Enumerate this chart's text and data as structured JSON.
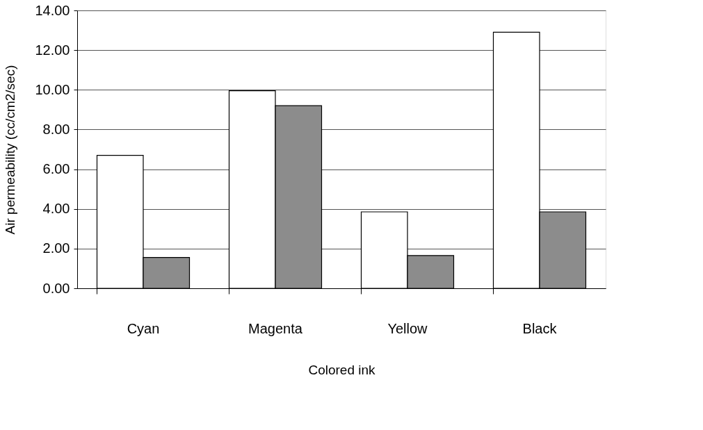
{
  "chart_data": {
    "type": "bar",
    "xlabel": "Colored ink",
    "ylabel": "Air permeability (cc/cm2/sec)",
    "categories": [
      "Cyan",
      "Magenta",
      "Yellow",
      "Black"
    ],
    "series": [
      {
        "color": "#ffffff",
        "values": [
          6.7,
          9.95,
          3.85,
          12.9
        ]
      },
      {
        "color": "#8c8c8c",
        "values": [
          1.55,
          9.2,
          1.65,
          3.85
        ]
      }
    ],
    "ylim": [
      0,
      14
    ],
    "yticks": [
      {
        "value": 0,
        "label": "0.00"
      },
      {
        "value": 2,
        "label": "2.00"
      },
      {
        "value": 4,
        "label": "4.00"
      },
      {
        "value": 6,
        "label": "6.00"
      },
      {
        "value": 8,
        "label": "8.00"
      },
      {
        "value": 10,
        "label": "10.00"
      },
      {
        "value": 12,
        "label": "12.00"
      },
      {
        "value": 14,
        "label": "14.00"
      }
    ],
    "grid": "y",
    "legend": false
  }
}
